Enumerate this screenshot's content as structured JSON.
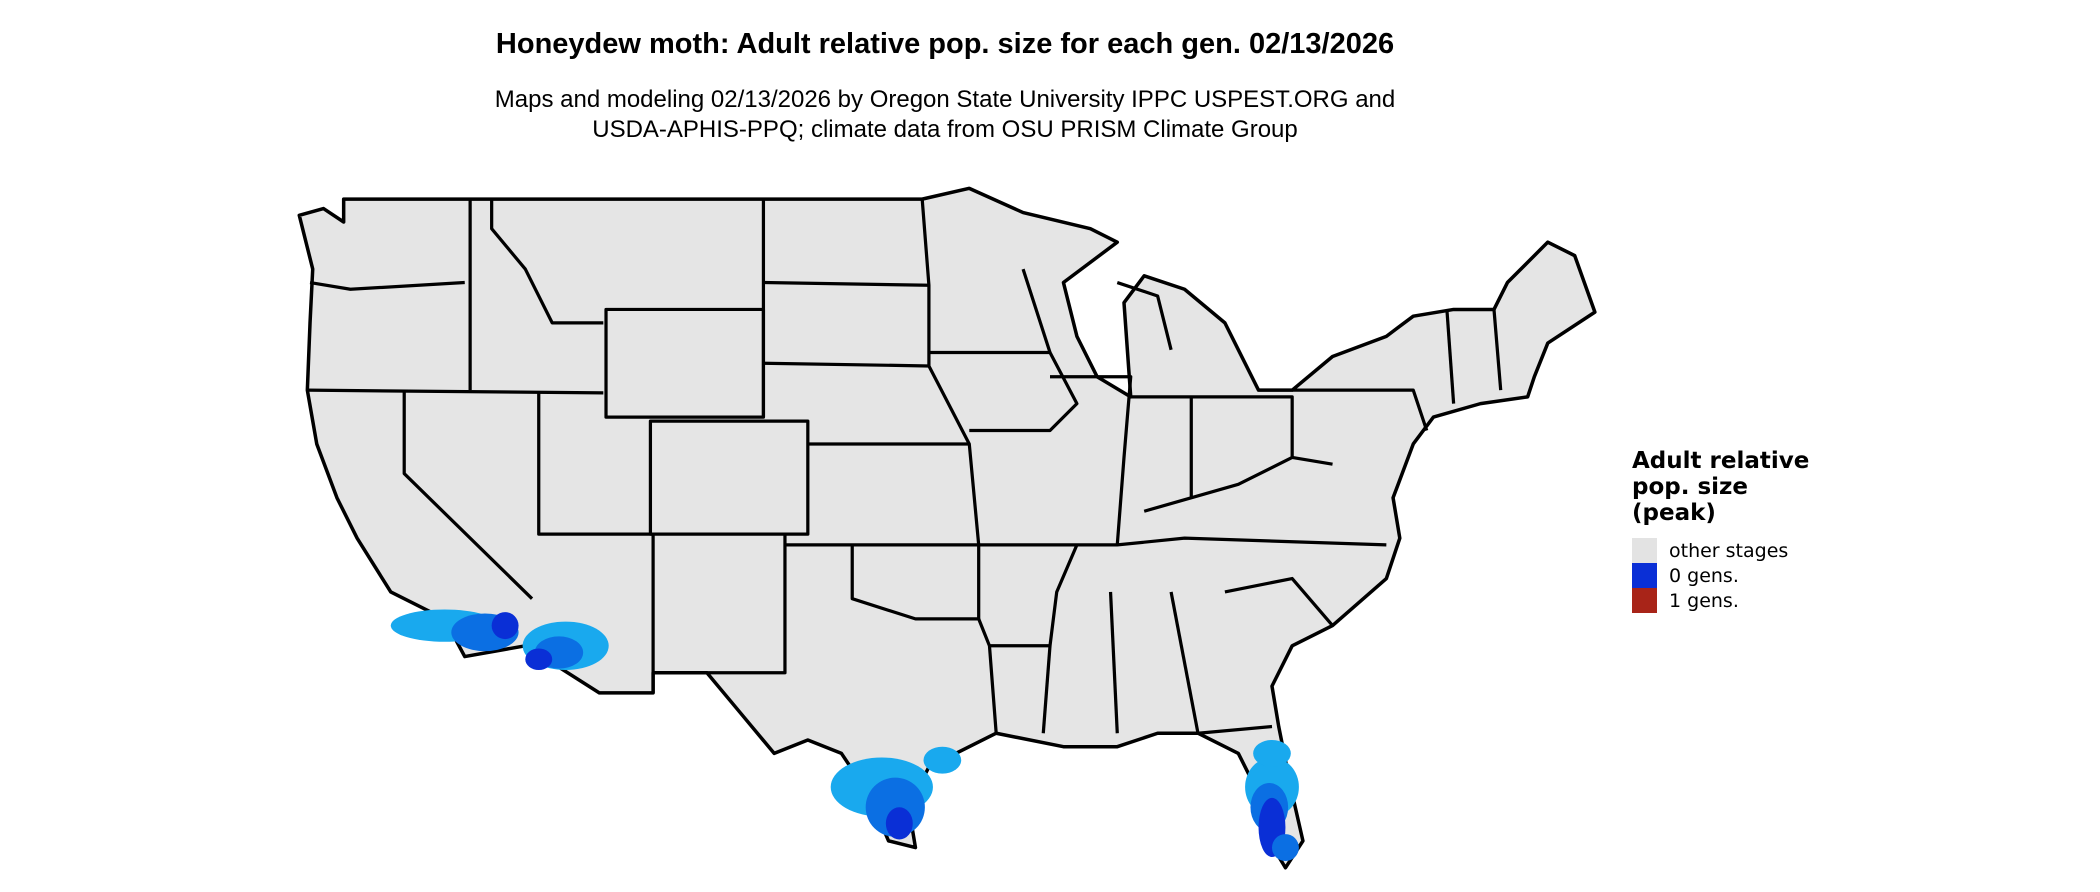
{
  "title": "Honeydew moth: Adult relative pop. size for each gen. 02/13/2026",
  "subtitle": [
    "Maps and modeling 02/13/2026 by Oregon State University IPPC USPEST.ORG and",
    "USDA-APHIS-PPQ; climate data from OSU PRISM Climate Group"
  ],
  "legend": {
    "title": [
      "Adult relative",
      "pop. size",
      "(peak)"
    ],
    "items": [
      {
        "label": "other stages",
        "color": "#e3e3e3"
      },
      {
        "label": "0 gens.",
        "color": "#0a2fd6"
      },
      {
        "label": "1 gens.",
        "color": "#a82418"
      }
    ]
  },
  "map": {
    "land_color": "#e5e5e5",
    "border_color": "#000000",
    "zero_gen_shades": [
      "#0a2fd6",
      "#0b6fe3",
      "#19a9ee"
    ]
  }
}
